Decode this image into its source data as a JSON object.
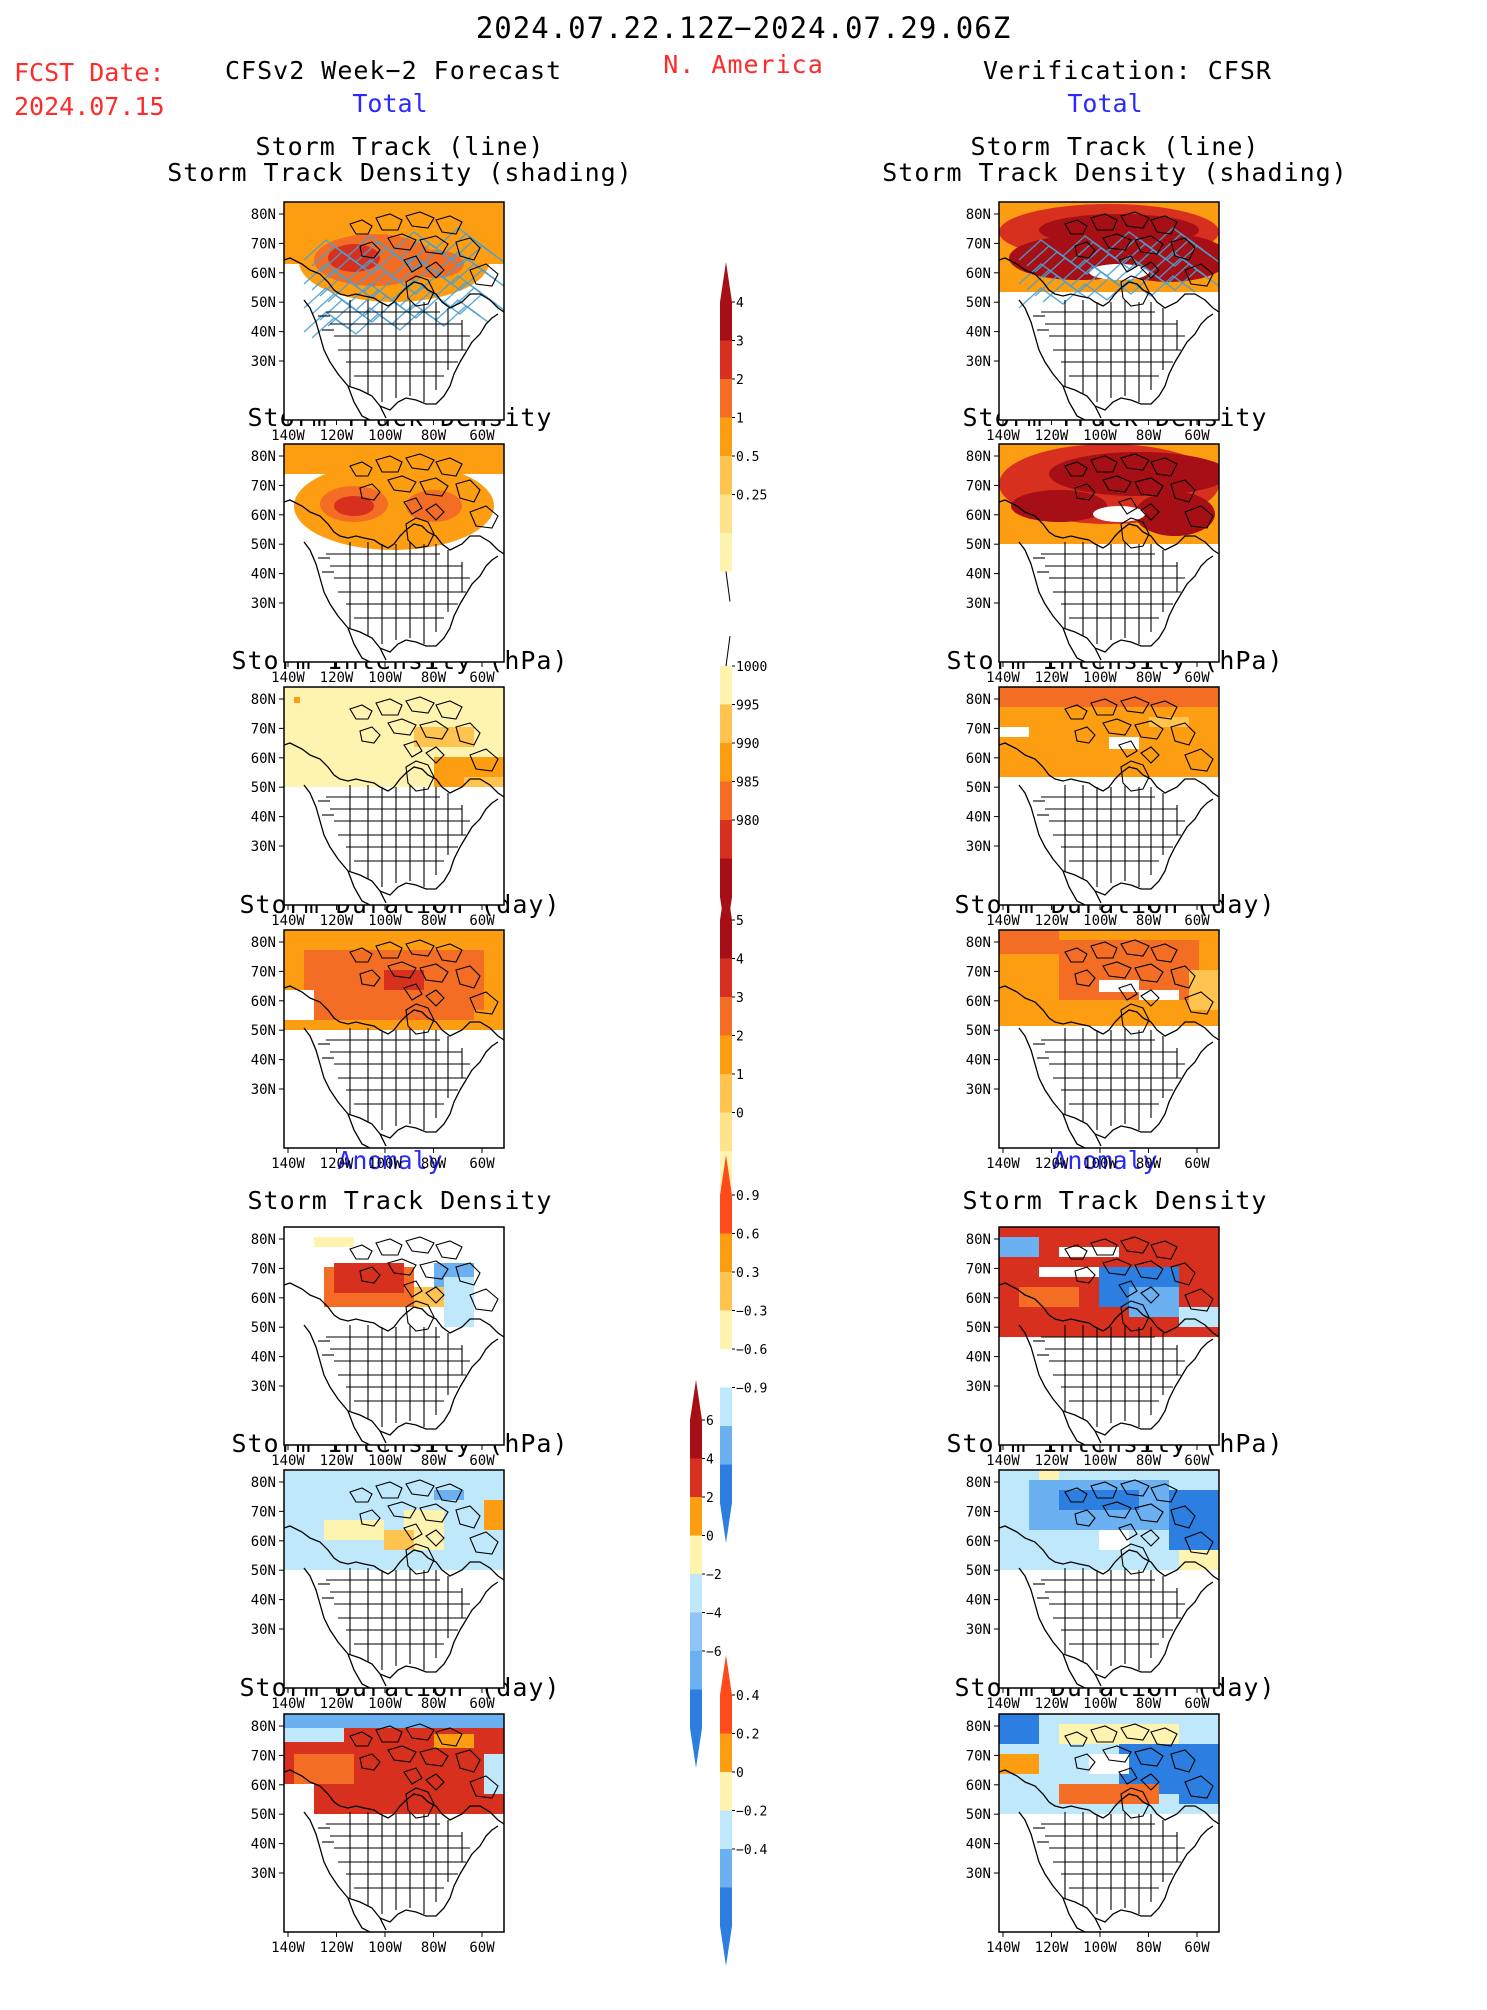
{
  "header": {
    "date_range": "2024.07.22.12Z−2024.07.29.06Z",
    "region": "N. America",
    "fcst_label": "FCST Date:",
    "fcst_date": "2024.07.15",
    "left_title": "CFSv2 Week−2 Forecast",
    "right_title": "Verification: CFSR",
    "total_label": "Total",
    "anomaly_label": "Anomaly"
  },
  "panel_titles": {
    "track": [
      "Storm Track (line)",
      "Storm Track Density (shading)"
    ],
    "density": "Storm Track Density",
    "intensity": "Storm Intensity (hPa)",
    "duration": "Storm Duration (day)"
  },
  "axes": {
    "lat_labels": [
      "80N",
      "70N",
      "60N",
      "50N",
      "40N",
      "30N"
    ],
    "lon_labels": [
      "140W",
      "120W",
      "100W",
      "80W",
      "60W"
    ]
  },
  "colorbars": {
    "total_density": [
      "4",
      "3",
      "2",
      "1",
      "0.5",
      "0.25"
    ],
    "total_intensity": [
      "1000",
      "995",
      "990",
      "985",
      "980"
    ],
    "total_duration": [
      "5",
      "4",
      "3",
      "2",
      "1",
      "0"
    ],
    "anom_density": [
      "0.9",
      "0.6",
      "0.3",
      "−0.3",
      "−0.6",
      "−0.9"
    ],
    "anom_intensity": [
      "6",
      "4",
      "2",
      "0",
      "−2",
      "−4",
      "−6"
    ],
    "anom_duration": [
      "0.4",
      "0.2",
      "0",
      "−0.2",
      "−0.4"
    ]
  },
  "colors": {
    "title_red": "#ff2a2a",
    "title_blue": "#2a2aff",
    "dark_red": "#a50f15",
    "red": "#d7301f",
    "orange_red": "#f46d25",
    "orange": "#fd9e12",
    "light_orange": "#fec44f",
    "pale_yellow": "#fff3b0",
    "light_blue": "#bfe8fb",
    "mid_blue": "#6bb0f0",
    "blue": "#2c7fe0",
    "track_line": "#4aa0d0"
  }
}
